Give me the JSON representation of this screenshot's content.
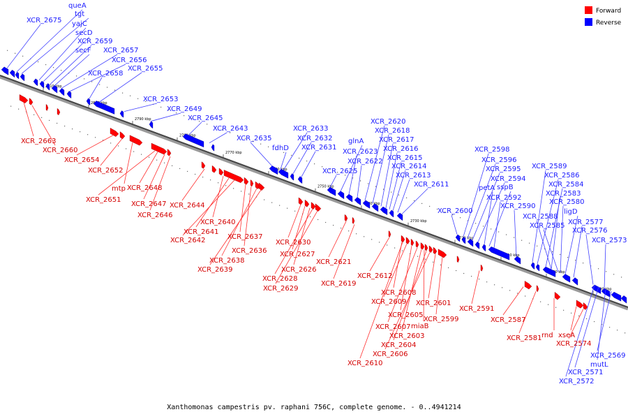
{
  "caption": "Xanthomonas campestris pv. raphani 756C, complete genome. - 0..4941214",
  "legend": [
    {
      "label": "Forward",
      "color": "#ff0000"
    },
    {
      "label": "Reverse",
      "color": "#0000ff"
    }
  ],
  "scale_ticks": [
    "2810 kbp",
    "2800 kbp",
    "2790 kbp",
    "2780 kbp",
    "2770 kbp",
    "2760 kbp",
    "2750 kbp",
    "2740 kbp",
    "2730 kbp",
    "2720 kbp",
    "2710 kbp",
    "2700 kbp",
    "2690 kbp"
  ],
  "reverse_labels": [
    "XCR_2675",
    "queA",
    "tgt",
    "yajC",
    "secD",
    "XCR_2659",
    "secF",
    "XCR_2657",
    "XCR_2656",
    "XCR_2658",
    "XCR_2655",
    "XCR_2653",
    "XCR_2649",
    "XCR_2645",
    "XCR_2643",
    "XCR_2635",
    "fdhD",
    "XCR_2633",
    "XCR_2632",
    "XCR_2631",
    "XCR_2625",
    "glnA",
    "XCR_2623",
    "XCR_2622",
    "XCR_2620",
    "XCR_2618",
    "XCR_2617",
    "XCR_2616",
    "XCR_2615",
    "XCR_2614",
    "XCR_2613",
    "XCR_2611",
    "XCR_2600",
    "XCR_2598",
    "XCR_2596",
    "XCR_2595",
    "XCR_2594",
    "petA",
    "sspB",
    "XCR_2592",
    "XCR_2590",
    "XCR_2589",
    "XCR_2586",
    "XCR_2584",
    "XCR_2583",
    "XCR_2580",
    "ligD",
    "XCR_2588",
    "XCR_2585",
    "XCR_2577",
    "XCR_2576",
    "XCR_2573",
    "XCR_2569",
    "mutL",
    "XCR_2571",
    "XCR_2572"
  ],
  "forward_labels": [
    "XCR_2663",
    "XCR_2660",
    "XCR_2654",
    "XCR_2652",
    "mtp",
    "XCR_2651",
    "XCR_2648",
    "XCR_2647",
    "XCR_2646",
    "XCR_2644",
    "XCR_2640",
    "XCR_2641",
    "XCR_2642",
    "XCR_2637",
    "XCR_2636",
    "XCR_2638",
    "XCR_2639",
    "XCR_2630",
    "XCR_2627",
    "XCR_2626",
    "XCR_2628",
    "XCR_2629",
    "XCR_2621",
    "XCR_2619",
    "XCR_2612",
    "XCR_2608",
    "XCR_2609",
    "XCR_2605",
    "XCR_2607",
    "miaB",
    "XCR_2603",
    "XCR_2604",
    "XCR_2606",
    "XCR_2610",
    "XCR_2601",
    "XCR_2599",
    "XCR_2591",
    "XCR_2587",
    "XCR_2581",
    "rnd",
    "xseA",
    "XCR_2574"
  ]
}
